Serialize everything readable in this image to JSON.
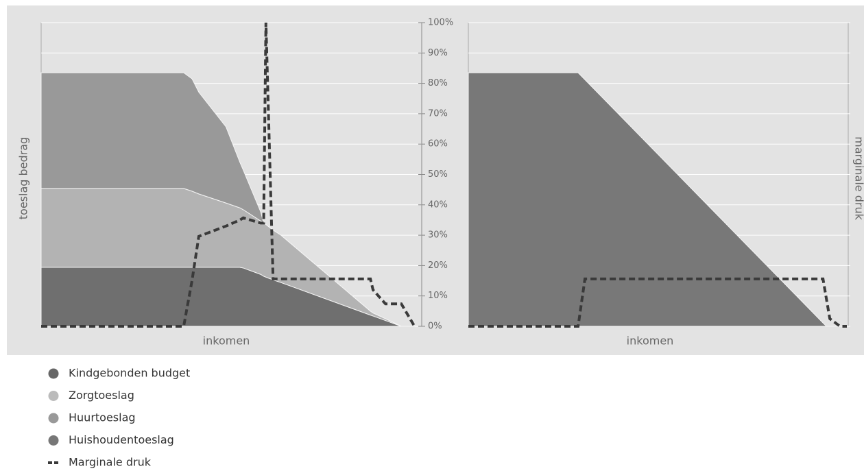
{
  "chart_data": [
    {
      "type": "area",
      "ylabel": "toeslag bedrag",
      "xlabel": "inkomen",
      "x": [
        0,
        37.8,
        40,
        41.8,
        49,
        52.7,
        53.6,
        58.2,
        59,
        59.6,
        61.5,
        63.6,
        87.3,
        88,
        91.3,
        95.5,
        99
      ],
      "xlim": [
        0,
        100
      ],
      "ylim": [
        0,
        100
      ],
      "y2lim": [
        0,
        100
      ],
      "grid": true,
      "stacked": true,
      "y2ticks": [
        {
          "value": 0,
          "label": "0%"
        },
        {
          "value": 10,
          "label": "10%"
        },
        {
          "value": 20,
          "label": "20%"
        },
        {
          "value": 30,
          "label": "30%"
        },
        {
          "value": 40,
          "label": "40%"
        },
        {
          "value": 50,
          "label": "50%"
        },
        {
          "value": 60,
          "label": "60%"
        },
        {
          "value": 70,
          "label": "70%"
        },
        {
          "value": 80,
          "label": "80%"
        },
        {
          "value": 90,
          "label": "90%"
        },
        {
          "value": 100,
          "label": "100%"
        }
      ],
      "series": [
        {
          "name": "Kindgebonden budget",
          "color": "#6f6f6f",
          "legend_color": "#666666",
          "values": [
            19.4,
            19.4,
            19.4,
            19.4,
            19.4,
            19.4,
            19.2,
            17.1,
            16.5,
            16.2,
            15.3,
            14.4,
            3.7,
            3.4,
            1.9,
            0,
            0
          ]
        },
        {
          "name": "Zorgtoeslag",
          "color": "#b3b3b3",
          "legend_color": "#bbbbbb",
          "values": [
            26,
            26,
            25.1,
            24.2,
            21.2,
            19.6,
            19.2,
            17.6,
            17.5,
            17.3,
            16.4,
            15.6,
            1.3,
            1,
            0.6,
            0,
            0
          ]
        },
        {
          "name": "Huurtoeslag",
          "color": "#999999",
          "legend_color": "#999999",
          "values": [
            38.1,
            38.1,
            37,
            33.5,
            25.1,
            15,
            13,
            3,
            0,
            0,
            0,
            0,
            0,
            0,
            0,
            0,
            0
          ]
        },
        {
          "name": "Marginale druk",
          "type": "line",
          "axis": "y2",
          "color": "#3a3a3a",
          "dashed": true,
          "values": [
            0,
            0,
            15,
            29.6,
            33,
            35,
            35.7,
            34,
            34,
            100,
            15.6,
            15.6,
            15.6,
            12,
            7.4,
            7.4,
            0
          ]
        }
      ]
    },
    {
      "type": "area",
      "xlabel": "inkomen",
      "y2label": "marginale druk",
      "x": [
        0,
        29,
        30.8,
        93.7,
        94.6,
        95.5,
        98.2,
        100
      ],
      "xlim": [
        0,
        100
      ],
      "ylim": [
        0,
        100
      ],
      "y2lim": [
        0,
        100
      ],
      "stacked": true,
      "series": [
        {
          "name": "Huishoudentoeslag",
          "color": "#787878",
          "legend_color": "#777777",
          "values": [
            83.5,
            83.5,
            81.2,
            1.1,
            0,
            0,
            0,
            0
          ]
        },
        {
          "type": "line",
          "axis": "y2",
          "color": "#3a3a3a",
          "dashed": true,
          "values": [
            0,
            0,
            15.6,
            15.6,
            9,
            2.5,
            0,
            0
          ]
        }
      ]
    }
  ]
}
